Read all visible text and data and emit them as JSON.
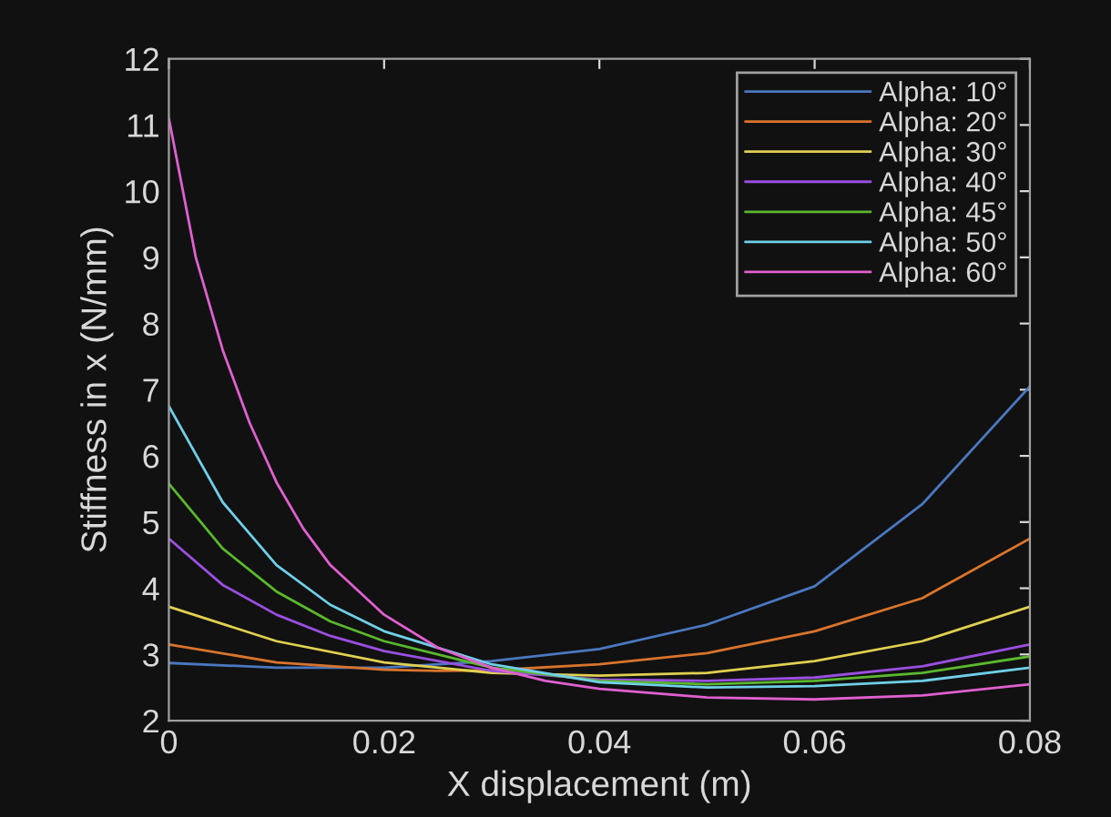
{
  "chart_data": {
    "type": "line",
    "xlabel": "X displacement (m)",
    "ylabel": "Stiffness in x (N/mm)",
    "xlim": [
      0,
      0.08
    ],
    "ylim": [
      2,
      12
    ],
    "xticks": [
      0,
      0.02,
      0.04,
      0.06,
      0.08
    ],
    "yticks": [
      2,
      3,
      4,
      5,
      6,
      7,
      8,
      9,
      10,
      11,
      12
    ],
    "grid": false,
    "legend": "top right",
    "marker": "none",
    "line_style": "solid",
    "series": [
      {
        "name": "Alpha: 10°",
        "color": "#4a78c0",
        "x": [
          0,
          0.01,
          0.02,
          0.03,
          0.04,
          0.05,
          0.06,
          0.07,
          0.08
        ],
        "values": [
          2.87,
          2.8,
          2.8,
          2.9,
          3.08,
          3.45,
          4.03,
          5.27,
          7.05
        ]
      },
      {
        "name": "Alpha: 20°",
        "color": "#d9742c",
        "x": [
          0,
          0.01,
          0.02,
          0.025,
          0.03,
          0.04,
          0.05,
          0.06,
          0.07,
          0.08
        ],
        "values": [
          3.15,
          2.88,
          2.77,
          2.75,
          2.76,
          2.85,
          3.02,
          3.35,
          3.85,
          4.75
        ]
      },
      {
        "name": "Alpha: 30°",
        "color": "#e0d050",
        "x": [
          0,
          0.01,
          0.02,
          0.03,
          0.04,
          0.05,
          0.06,
          0.07,
          0.08
        ],
        "values": [
          3.72,
          3.2,
          2.88,
          2.72,
          2.68,
          2.72,
          2.9,
          3.2,
          3.72
        ]
      },
      {
        "name": "Alpha: 40°",
        "color": "#9a4fe0",
        "x": [
          0,
          0.005,
          0.01,
          0.015,
          0.02,
          0.03,
          0.04,
          0.05,
          0.06,
          0.07,
          0.08
        ],
        "values": [
          4.75,
          4.05,
          3.6,
          3.28,
          3.05,
          2.75,
          2.62,
          2.6,
          2.65,
          2.82,
          3.15
        ]
      },
      {
        "name": "Alpha: 45°",
        "color": "#5ab82e",
        "x": [
          0,
          0.005,
          0.01,
          0.015,
          0.02,
          0.03,
          0.04,
          0.05,
          0.06,
          0.07,
          0.08
        ],
        "values": [
          5.58,
          4.6,
          3.95,
          3.5,
          3.2,
          2.8,
          2.6,
          2.55,
          2.6,
          2.72,
          2.97
        ]
      },
      {
        "name": "Alpha: 50°",
        "color": "#6fd0e8",
        "x": [
          0,
          0.005,
          0.01,
          0.015,
          0.02,
          0.03,
          0.04,
          0.05,
          0.06,
          0.07,
          0.08
        ],
        "values": [
          6.75,
          5.3,
          4.35,
          3.75,
          3.35,
          2.85,
          2.58,
          2.5,
          2.52,
          2.6,
          2.8
        ]
      },
      {
        "name": "Alpha: 60°",
        "color": "#e060d0",
        "x": [
          0,
          0.0025,
          0.005,
          0.0075,
          0.01,
          0.0125,
          0.015,
          0.02,
          0.025,
          0.03,
          0.035,
          0.04,
          0.05,
          0.06,
          0.07,
          0.08
        ],
        "values": [
          11.1,
          9.0,
          7.6,
          6.5,
          5.6,
          4.9,
          4.35,
          3.6,
          3.1,
          2.8,
          2.6,
          2.48,
          2.35,
          2.32,
          2.38,
          2.55
        ]
      }
    ]
  }
}
